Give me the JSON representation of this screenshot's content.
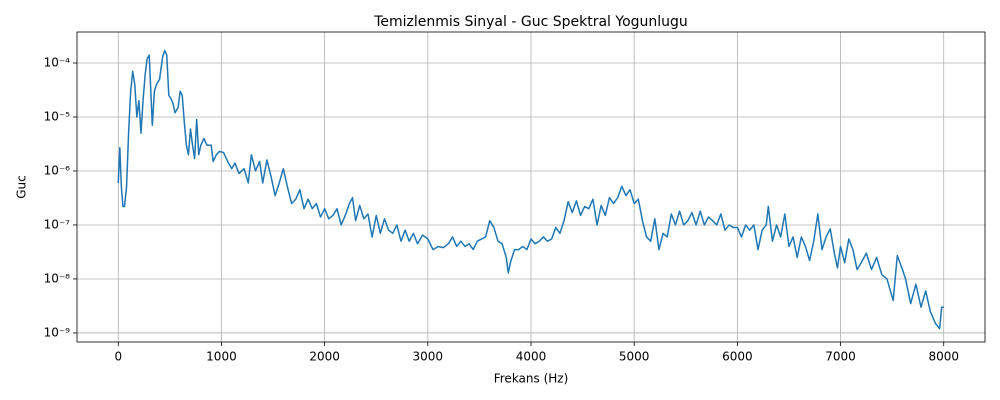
{
  "chart_data": {
    "type": "line",
    "title": "Temizlenmis Sinyal - Guc Spektral Yogunlugu",
    "xlabel": "Frekans (Hz)",
    "ylabel": "Guc",
    "color": "#1f77b4",
    "log_y": true,
    "grid": true,
    "xlim": [
      -400,
      8400
    ],
    "xticks": [
      0,
      1000,
      2000,
      3000,
      4000,
      5000,
      6000,
      7000,
      8000
    ],
    "ylim": [
      6.8e-10,
      0.000375
    ],
    "yticks": [
      {
        "value": 1e-09,
        "label": "10⁻⁹"
      },
      {
        "value": 1e-08,
        "label": "10⁻⁸"
      },
      {
        "value": 1e-07,
        "label": "10⁻⁷"
      },
      {
        "value": 1e-06,
        "label": "10⁻⁶"
      },
      {
        "value": 1e-05,
        "label": "10⁻⁵"
      },
      {
        "value": 0.0001,
        "label": "10⁻⁴"
      }
    ],
    "x": [
      0,
      15,
      30,
      45,
      60,
      80,
      100,
      120,
      140,
      160,
      180,
      200,
      220,
      240,
      260,
      280,
      300,
      330,
      350,
      370,
      400,
      430,
      450,
      470,
      490,
      510,
      530,
      550,
      580,
      600,
      620,
      640,
      660,
      680,
      700,
      720,
      740,
      760,
      780,
      800,
      830,
      860,
      900,
      920,
      950,
      980,
      1020,
      1060,
      1100,
      1130,
      1170,
      1220,
      1260,
      1290,
      1330,
      1370,
      1400,
      1440,
      1480,
      1520,
      1560,
      1600,
      1640,
      1680,
      1720,
      1760,
      1800,
      1840,
      1880,
      1920,
      1960,
      2000,
      2040,
      2080,
      2120,
      2160,
      2200,
      2240,
      2270,
      2300,
      2340,
      2380,
      2420,
      2460,
      2500,
      2540,
      2580,
      2620,
      2660,
      2700,
      2740,
      2780,
      2820,
      2860,
      2900,
      2950,
      3000,
      3050,
      3100,
      3150,
      3200,
      3240,
      3280,
      3320,
      3360,
      3400,
      3440,
      3480,
      3520,
      3560,
      3600,
      3640,
      3680,
      3720,
      3760,
      3780,
      3800,
      3840,
      3880,
      3920,
      3960,
      4000,
      4040,
      4080,
      4120,
      4160,
      4200,
      4240,
      4280,
      4320,
      4360,
      4400,
      4440,
      4480,
      4520,
      4560,
      4600,
      4640,
      4680,
      4720,
      4760,
      4800,
      4840,
      4880,
      4920,
      4960,
      5000,
      5040,
      5080,
      5120,
      5160,
      5200,
      5240,
      5280,
      5320,
      5360,
      5400,
      5440,
      5480,
      5520,
      5560,
      5600,
      5640,
      5680,
      5720,
      5760,
      5800,
      5840,
      5880,
      5920,
      5960,
      6000,
      6040,
      6080,
      6120,
      6160,
      6200,
      6240,
      6280,
      6300,
      6340,
      6380,
      6420,
      6460,
      6500,
      6540,
      6580,
      6620,
      6660,
      6700,
      6740,
      6780,
      6820,
      6860,
      6900,
      6940,
      6970,
      7000,
      7040,
      7080,
      7120,
      7160,
      7200,
      7250,
      7300,
      7350,
      7400,
      7450,
      7510,
      7550,
      7600,
      7630,
      7680,
      7730,
      7780,
      7825,
      7870,
      7920,
      7960,
      7980,
      8000
    ],
    "values": [
      6e-07,
      2.7e-06,
      5e-07,
      2.2e-07,
      2.2e-07,
      5e-07,
      5e-06,
      3e-05,
      7e-05,
      4e-05,
      1e-05,
      2e-05,
      5e-06,
      2e-05,
      6e-05,
      0.00012,
      0.00014,
      7e-06,
      3e-05,
      4e-05,
      5e-05,
      0.00013,
      0.00017,
      0.00014,
      2.5e-05,
      2.2e-05,
      1.8e-05,
      1.2e-05,
      1.5e-05,
      3e-05,
      2.5e-05,
      8e-06,
      3e-06,
      2e-06,
      6e-06,
      3e-06,
      1.7e-06,
      9e-06,
      2e-06,
      3e-06,
      4e-06,
      3e-06,
      3e-06,
      1.5e-06,
      2e-06,
      2.3e-06,
      2.2e-06,
      1.5e-06,
      1.1e-06,
      1.4e-06,
      9e-07,
      1.1e-06,
      6e-07,
      2e-06,
      1e-06,
      1.5e-06,
      6e-07,
      1.6e-06,
      8e-07,
      3.5e-07,
      6e-07,
      1.1e-06,
      5e-07,
      2.5e-07,
      3e-07,
      4.5e-07,
      2e-07,
      3e-07,
      2e-07,
      2.5e-07,
      1.4e-07,
      2e-07,
      1.3e-07,
      1.5e-07,
      2e-07,
      1e-07,
      1.5e-07,
      2.5e-07,
      3.2e-07,
      1.2e-07,
      2.3e-07,
      1.3e-07,
      1.6e-07,
      6e-08,
      1.5e-07,
      7e-08,
      1.3e-07,
      8e-08,
      7e-08,
      1e-07,
      5e-08,
      8e-08,
      5e-08,
      7e-08,
      4.5e-08,
      6.5e-08,
      5.5e-08,
      3.5e-08,
      4e-08,
      3.8e-08,
      4.5e-08,
      6e-08,
      4e-08,
      5e-08,
      4e-08,
      4.5e-08,
      3.5e-08,
      5e-08,
      5.5e-08,
      6e-08,
      1.2e-07,
      9e-08,
      5e-08,
      4.5e-08,
      2.5e-08,
      1.3e-08,
      2e-08,
      3.5e-08,
      3.5e-08,
      4e-08,
      3.5e-08,
      5.5e-08,
      4.5e-08,
      5e-08,
      6e-08,
      5e-08,
      5.5e-08,
      9e-08,
      7e-08,
      1.2e-07,
      2.7e-07,
      1.7e-07,
      2.8e-07,
      1.5e-07,
      2.2e-07,
      2e-07,
      3e-07,
      1e-07,
      2.3e-07,
      1.5e-07,
      3.2e-07,
      2.5e-07,
      3.2e-07,
      5.2e-07,
      3.5e-07,
      4.5e-07,
      2.5e-07,
      3e-07,
      1.2e-07,
      6e-08,
      5e-08,
      1.3e-07,
      3.5e-08,
      7e-08,
      6e-08,
      1.6e-07,
      1e-07,
      1.8e-07,
      1e-07,
      1.2e-07,
      1.7e-07,
      1e-07,
      1.8e-07,
      1e-07,
      1.4e-07,
      1.2e-07,
      1e-07,
      1.6e-07,
      8e-08,
      1e-07,
      9e-08,
      9e-08,
      6e-08,
      1e-07,
      8e-08,
      1e-07,
      3.5e-08,
      8e-08,
      1e-07,
      2.2e-07,
      5e-08,
      1e-07,
      6e-08,
      1.6e-07,
      4e-08,
      6e-08,
      2.5e-08,
      6e-08,
      4e-08,
      2.2e-08,
      5e-08,
      1.6e-07,
      3.5e-08,
      6e-08,
      8.5e-08,
      3e-08,
      1.6e-08,
      4e-08,
      2e-08,
      5.5e-08,
      3.5e-08,
      1.5e-08,
      2e-08,
      3e-08,
      1.5e-08,
      2.5e-08,
      1.2e-08,
      1e-08,
      4e-09,
      2.7e-08,
      1.5e-08,
      1e-08,
      3.5e-09,
      8e-09,
      3e-09,
      6e-09,
      2.5e-09,
      1.5e-09,
      1.2e-09,
      3e-09,
      3e-09
    ]
  }
}
